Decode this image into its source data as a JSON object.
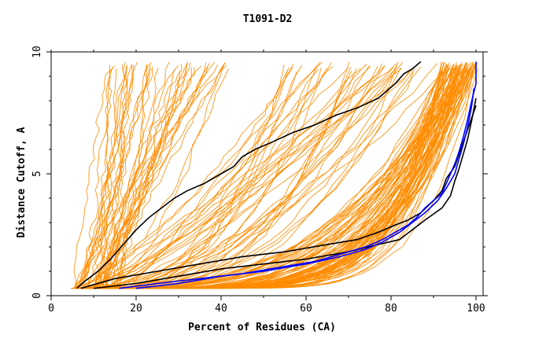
{
  "chart_data": {
    "type": "line",
    "title": "T1091-D2",
    "xlabel": "Percent of Residues (CA)",
    "ylabel": "Distance Cutoff, A",
    "xlim": [
      0,
      100
    ],
    "ylim": [
      0,
      10
    ],
    "x_ticks": [
      0,
      20,
      40,
      60,
      80,
      100
    ],
    "y_ticks": [
      0,
      5,
      10
    ],
    "grid": false,
    "background_series_color": "#ff8c00",
    "series": [
      {
        "color": "#000000",
        "x": [
          6,
          8,
          11,
          14,
          17,
          20,
          23,
          26,
          29,
          32,
          36,
          40,
          43,
          45,
          48,
          52,
          57,
          62,
          67,
          72,
          77,
          79,
          81,
          83,
          85,
          87
        ],
        "y": [
          0.3,
          0.6,
          1.0,
          1.5,
          2.1,
          2.7,
          3.2,
          3.6,
          4.0,
          4.3,
          4.6,
          5.0,
          5.3,
          5.7,
          6.0,
          6.3,
          6.7,
          7.0,
          7.4,
          7.7,
          8.1,
          8.4,
          8.7,
          9.1,
          9.3,
          9.6
        ]
      },
      {
        "color": "#000000",
        "x": [
          7,
          15,
          25,
          35,
          45,
          55,
          65,
          72,
          77,
          81,
          84,
          87,
          90,
          92,
          93,
          95,
          96,
          97,
          98,
          99,
          100
        ],
        "y": [
          0.3,
          0.7,
          1.0,
          1.3,
          1.6,
          1.8,
          2.1,
          2.3,
          2.6,
          2.9,
          3.1,
          3.4,
          3.9,
          4.3,
          4.8,
          5.3,
          5.8,
          6.3,
          6.8,
          7.3,
          7.8
        ]
      },
      {
        "color": "#000000",
        "x": [
          10,
          20,
          30,
          40,
          50,
          60,
          70,
          77,
          82,
          85,
          88,
          92,
          94,
          95,
          96,
          97,
          98,
          99,
          100
        ],
        "y": [
          0.3,
          0.5,
          0.8,
          1.1,
          1.3,
          1.5,
          1.8,
          2.1,
          2.3,
          2.7,
          3.1,
          3.6,
          4.1,
          4.7,
          5.2,
          5.8,
          6.4,
          7.2,
          8.1
        ]
      },
      {
        "color": "#0000ff",
        "x": [
          16,
          25,
          35,
          45,
          55,
          62,
          68,
          74,
          78,
          81,
          84,
          86,
          88,
          90,
          92,
          93,
          94,
          95,
          96,
          97,
          98,
          99,
          100,
          100
        ],
        "y": [
          0.3,
          0.5,
          0.7,
          0.9,
          1.2,
          1.4,
          1.7,
          2.0,
          2.3,
          2.6,
          2.9,
          3.2,
          3.6,
          3.9,
          4.2,
          4.6,
          5.0,
          5.4,
          5.9,
          6.5,
          7.2,
          8.0,
          8.7,
          9.6
        ]
      },
      {
        "color": "#0000ff",
        "x": [
          20,
          30,
          40,
          50,
          60,
          68,
          74,
          78,
          82,
          85,
          88,
          91,
          93,
          95,
          96,
          97,
          98,
          99,
          99.5
        ],
        "y": [
          0.3,
          0.5,
          0.8,
          1.0,
          1.3,
          1.6,
          1.9,
          2.2,
          2.6,
          3.0,
          3.4,
          3.9,
          4.4,
          5.0,
          5.6,
          6.2,
          6.9,
          7.8,
          8.5
        ]
      }
    ]
  }
}
